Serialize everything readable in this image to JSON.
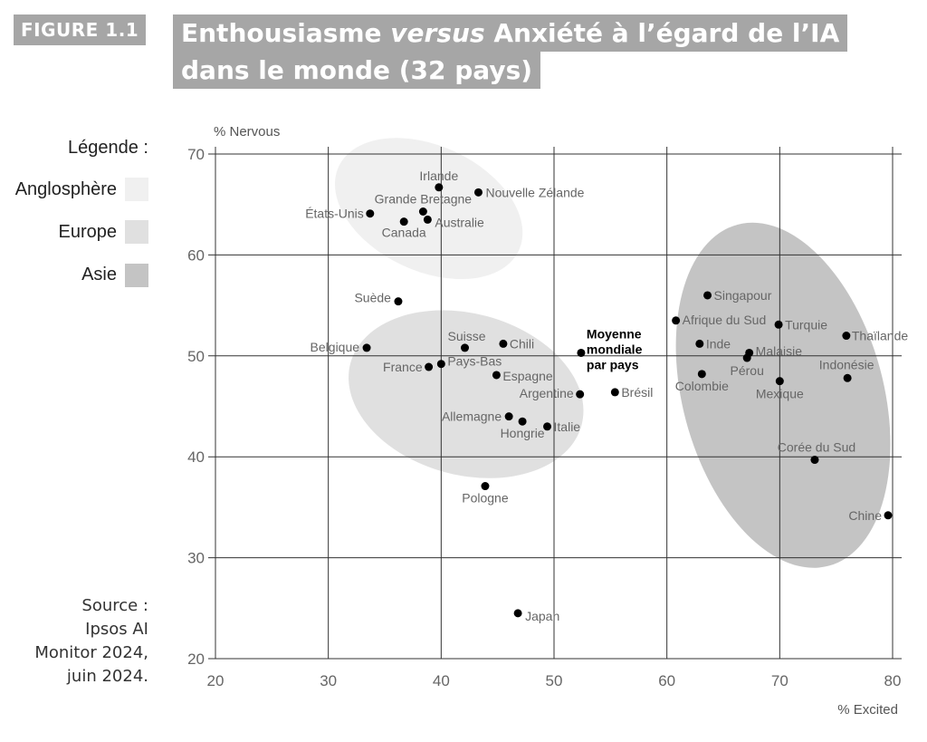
{
  "figure_label": "FIGURE 1.1",
  "title": {
    "line1_a": "Enthousiasme ",
    "line1_b": "versus",
    "line1_c": " Anxiété à l’égard de l’IA",
    "line2": "dans le monde (32 pays)"
  },
  "legend": {
    "heading": "Légende :",
    "items": [
      {
        "label": "Anglosphère",
        "color": "#f0f0f0"
      },
      {
        "label": "Europe",
        "color": "#e0e0e0"
      },
      {
        "label": "Asie",
        "color": "#c4c4c4"
      }
    ]
  },
  "source": [
    "Source :",
    "Ipsos AI",
    "Monitor 2024,",
    "juin 2024."
  ],
  "chart_data": {
    "type": "scatter",
    "xlabel": "% Excited",
    "ylabel": "% Nervous",
    "xlim": [
      20,
      80
    ],
    "ylim": [
      20,
      70
    ],
    "xticks": [
      20,
      30,
      40,
      50,
      60,
      70,
      80
    ],
    "yticks": [
      20,
      30,
      40,
      50,
      60,
      70
    ],
    "grid": true,
    "point_color": "#000000",
    "points": [
      {
        "label": "Irlande",
        "x": 39.8,
        "y": 66.7
      },
      {
        "label": "Nouvelle Zélande",
        "x": 43.3,
        "y": 66.2
      },
      {
        "label": "Grande Bretagne",
        "x": 38.4,
        "y": 64.3
      },
      {
        "label": "États-Unis",
        "x": 33.7,
        "y": 64.1
      },
      {
        "label": "Australie",
        "x": 38.8,
        "y": 63.5
      },
      {
        "label": "Canada",
        "x": 36.7,
        "y": 63.3
      },
      {
        "label": "Suède",
        "x": 36.2,
        "y": 55.4
      },
      {
        "label": "Belgique",
        "x": 33.4,
        "y": 50.8
      },
      {
        "label": "Suisse",
        "x": 42.1,
        "y": 50.8
      },
      {
        "label": "Chili",
        "x": 45.5,
        "y": 51.2
      },
      {
        "label": "France",
        "x": 38.9,
        "y": 48.9
      },
      {
        "label": "Pays-Bas",
        "x": 40.0,
        "y": 49.2
      },
      {
        "label": "Espagne",
        "x": 44.9,
        "y": 48.1
      },
      {
        "label": "Argentine",
        "x": 52.3,
        "y": 46.2
      },
      {
        "label": "Brésil",
        "x": 55.4,
        "y": 46.4
      },
      {
        "label": "Allemagne",
        "x": 46.0,
        "y": 44.0
      },
      {
        "label": "Hongrie",
        "x": 47.2,
        "y": 43.5
      },
      {
        "label": "Italie",
        "x": 49.4,
        "y": 43.0
      },
      {
        "label": "Pologne",
        "x": 43.9,
        "y": 37.1
      },
      {
        "label": "Japan",
        "x": 46.8,
        "y": 24.5
      },
      {
        "label": "Moyenne mondiale par pays",
        "x": 52.4,
        "y": 50.3,
        "highlight": true
      },
      {
        "label": "Singapour",
        "x": 63.6,
        "y": 56.0
      },
      {
        "label": "Afrique du Sud",
        "x": 60.8,
        "y": 53.5
      },
      {
        "label": "Turquie",
        "x": 69.9,
        "y": 53.1
      },
      {
        "label": "Thaïlande",
        "x": 75.9,
        "y": 52.0
      },
      {
        "label": "Inde",
        "x": 62.9,
        "y": 51.2
      },
      {
        "label": "Malaisie",
        "x": 67.3,
        "y": 50.3
      },
      {
        "label": "Pérou",
        "x": 67.1,
        "y": 49.8
      },
      {
        "label": "Colombie",
        "x": 63.1,
        "y": 48.2
      },
      {
        "label": "Indonésie",
        "x": 76.0,
        "y": 47.8
      },
      {
        "label": "Mexique",
        "x": 70.0,
        "y": 47.5
      },
      {
        "label": "Corée du Sud",
        "x": 73.1,
        "y": 39.7
      },
      {
        "label": "Chine",
        "x": 79.6,
        "y": 34.2
      }
    ],
    "groups": [
      {
        "name": "Anglosphère",
        "cx": 38.9,
        "cy": 64.6,
        "rx": 8.8,
        "ry": 6.2,
        "rotate": 25,
        "color": "#f0f0f0"
      },
      {
        "name": "Europe",
        "cx": 42.2,
        "cy": 46.2,
        "rx": 10.6,
        "ry": 8.0,
        "rotate": 15,
        "color": "#e0e0e0"
      },
      {
        "name": "Asie",
        "cx": 70.3,
        "cy": 46.1,
        "rx": 8.9,
        "ry": 17.5,
        "rotate": -15,
        "color": "#c4c4c4"
      }
    ]
  }
}
